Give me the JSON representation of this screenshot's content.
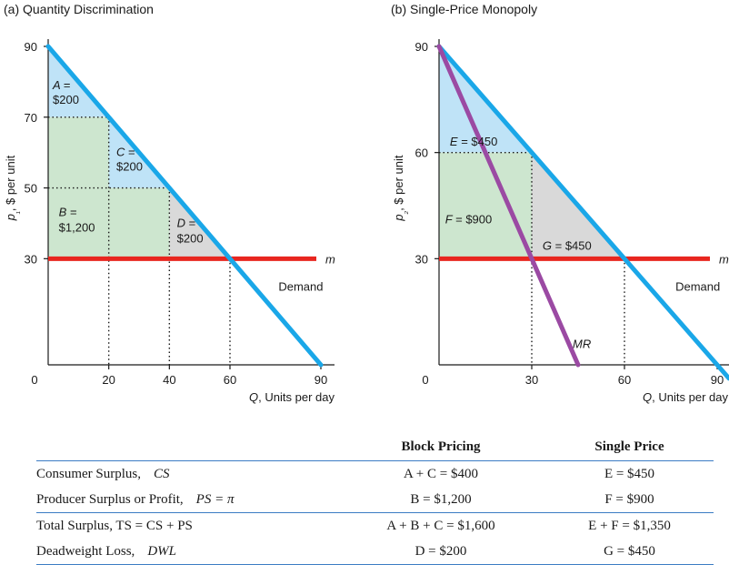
{
  "chart_data": [
    {
      "type": "area",
      "title": "(a) Quantity Discrimination",
      "ylabel": "p₁, $ per unit",
      "xlabel": "Q, Units per day",
      "xlim": [
        0,
        90
      ],
      "ylim": [
        0,
        90
      ],
      "x_ticks": [
        0,
        20,
        40,
        60,
        90
      ],
      "y_ticks": [
        30,
        50,
        70,
        90
      ],
      "tick_labels_x": [
        "0",
        "20",
        "40",
        "60",
        "90"
      ],
      "tick_labels_y": [
        "30",
        "50",
        "70",
        "90"
      ],
      "series": [
        {
          "name": "Demand",
          "x": [
            0,
            90
          ],
          "y": [
            90,
            0
          ],
          "color": "#1aa7e8"
        },
        {
          "name": "m",
          "x": [
            0,
            90
          ],
          "y": [
            30,
            30
          ],
          "color": "#e8261f"
        }
      ],
      "blocks": [
        {
          "x": [
            0,
            20
          ],
          "price": 70
        },
        {
          "x": [
            20,
            40
          ],
          "price": 50
        },
        {
          "x": [
            40,
            60
          ],
          "price": 30
        }
      ],
      "regions": [
        {
          "name": "A",
          "lines": [
            "A =",
            "$200"
          ],
          "value": 200,
          "color": "#bfe3f7"
        },
        {
          "name": "C",
          "lines": [
            "C =",
            "$200"
          ],
          "value": 200,
          "color": "#bfe3f7"
        },
        {
          "name": "B",
          "lines": [
            "B =",
            "$1,200"
          ],
          "value": 1200,
          "color": "#cde6cf"
        },
        {
          "name": "D",
          "lines": [
            "D =",
            "$200"
          ],
          "value": 200,
          "color": "#d9d9d9"
        }
      ],
      "grid": false
    },
    {
      "type": "area",
      "title": "(b) Single-Price Monopoly",
      "ylabel": "p₂, $ per unit",
      "xlabel": "Q, Units per day",
      "xlim": [
        0,
        90
      ],
      "ylim": [
        0,
        90
      ],
      "x_ticks": [
        0,
        30,
        60,
        90
      ],
      "y_ticks": [
        30,
        60,
        90
      ],
      "tick_labels_x": [
        "0",
        "30",
        "60",
        "90"
      ],
      "tick_labels_y": [
        "30",
        "60",
        "90"
      ],
      "series": [
        {
          "name": "Demand",
          "x": [
            0,
            90
          ],
          "y": [
            90,
            0
          ],
          "color": "#1aa7e8"
        },
        {
          "name": "MR",
          "x": [
            0,
            45
          ],
          "y": [
            90,
            0
          ],
          "color": "#9b4aa3"
        },
        {
          "name": "m",
          "x": [
            0,
            90
          ],
          "y": [
            30,
            30
          ],
          "color": "#e8261f"
        }
      ],
      "equilibrium": {
        "q": 30,
        "price": 60,
        "efficient_q": 60
      },
      "regions": [
        {
          "name": "E",
          "lines": [
            "E = $450"
          ],
          "value": 450,
          "color": "#bfe3f7"
        },
        {
          "name": "F",
          "lines": [
            "F = $900"
          ],
          "value": 900,
          "color": "#cde6cf"
        },
        {
          "name": "G",
          "lines": [
            "G = $450"
          ],
          "value": 450,
          "color": "#d9d9d9"
        }
      ],
      "grid": false
    },
    {
      "type": "table",
      "columns": [
        "",
        "Block Pricing",
        "Single Price"
      ],
      "rows": [
        {
          "label": "Consumer Surplus,",
          "symbol": "CS",
          "block": "A + C = $400",
          "single": "E = $450"
        },
        {
          "label": "Producer Surplus or Profit,",
          "symbol": "PS = π",
          "block": "B = $1,200",
          "single": "F = $900"
        },
        {
          "label": "Total Surplus, TS = CS + PS",
          "symbol": "",
          "block": "A + B + C = $1,600",
          "single": "E + F = $1,350"
        },
        {
          "label": "Deadweight Loss,",
          "symbol": "DWL",
          "block": "D = $200",
          "single": "G = $450"
        }
      ]
    }
  ]
}
